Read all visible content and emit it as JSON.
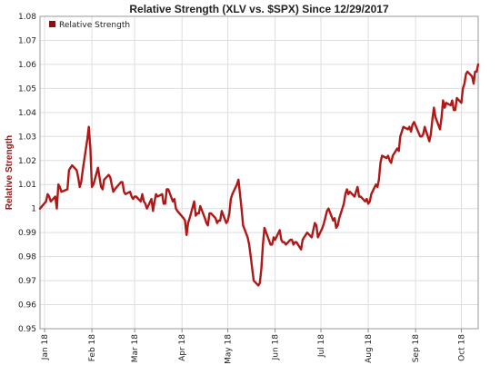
{
  "chart_data": {
    "type": "line",
    "title": "Relative Strength (XLV vs. $SPX) Since 12/29/2017",
    "ylabel": "Relative Strength",
    "xlabel": "",
    "ylim": [
      0.95,
      1.08
    ],
    "yticks": [
      0.95,
      0.96,
      0.97,
      0.98,
      0.99,
      1,
      1.01,
      1.02,
      1.03,
      1.04,
      1.05,
      1.06,
      1.07,
      1.08
    ],
    "xlim": [
      "2017-12-29",
      "2018-10-12"
    ],
    "xticks": [
      {
        "label": "Jan 18",
        "date": "2018-01-01"
      },
      {
        "label": "Feb 18",
        "date": "2018-02-01"
      },
      {
        "label": "Mar 18",
        "date": "2018-03-01"
      },
      {
        "label": "Apr 18",
        "date": "2018-04-01"
      },
      {
        "label": "May 18",
        "date": "2018-05-01"
      },
      {
        "label": "Jun 18",
        "date": "2018-06-01"
      },
      {
        "label": "Jul 18",
        "date": "2018-07-01"
      },
      {
        "label": "Aug 18",
        "date": "2018-08-01"
      },
      {
        "label": "Sep 18",
        "date": "2018-09-01"
      },
      {
        "label": "Oct 18",
        "date": "2018-10-01"
      }
    ],
    "grid": true,
    "legend": "top-left",
    "series": [
      {
        "name": "Relative Strength",
        "color": "#b01818",
        "points": [
          [
            "2017-12-29",
            1.0
          ],
          [
            "2018-01-02",
            1.003
          ],
          [
            "2018-01-03",
            1.006
          ],
          [
            "2018-01-04",
            1.005
          ],
          [
            "2018-01-05",
            1.003
          ],
          [
            "2018-01-08",
            1.005
          ],
          [
            "2018-01-09",
            1.0
          ],
          [
            "2018-01-10",
            1.01
          ],
          [
            "2018-01-11",
            1.009
          ],
          [
            "2018-01-12",
            1.007
          ],
          [
            "2018-01-16",
            1.008
          ],
          [
            "2018-01-17",
            1.016
          ],
          [
            "2018-01-18",
            1.017
          ],
          [
            "2018-01-19",
            1.018
          ],
          [
            "2018-01-22",
            1.016
          ],
          [
            "2018-01-23",
            1.013
          ],
          [
            "2018-01-24",
            1.009
          ],
          [
            "2018-01-25",
            1.011
          ],
          [
            "2018-01-26",
            1.016
          ],
          [
            "2018-01-29",
            1.029
          ],
          [
            "2018-01-30",
            1.034
          ],
          [
            "2018-01-31",
            1.025
          ],
          [
            "2018-02-01",
            1.009
          ],
          [
            "2018-02-02",
            1.01
          ],
          [
            "2018-02-05",
            1.017
          ],
          [
            "2018-02-06",
            1.013
          ],
          [
            "2018-02-07",
            1.009
          ],
          [
            "2018-02-08",
            1.008
          ],
          [
            "2018-02-09",
            1.012
          ],
          [
            "2018-02-12",
            1.014
          ],
          [
            "2018-02-13",
            1.013
          ],
          [
            "2018-02-14",
            1.01
          ],
          [
            "2018-02-15",
            1.007
          ],
          [
            "2018-02-16",
            1.008
          ],
          [
            "2018-02-20",
            1.011
          ],
          [
            "2018-02-21",
            1.011
          ],
          [
            "2018-02-22",
            1.007
          ],
          [
            "2018-02-23",
            1.006
          ],
          [
            "2018-02-26",
            1.007
          ],
          [
            "2018-02-27",
            1.005
          ],
          [
            "2018-02-28",
            1.004
          ],
          [
            "2018-03-01",
            1.005
          ],
          [
            "2018-03-02",
            1.005
          ],
          [
            "2018-03-05",
            1.003
          ],
          [
            "2018-03-06",
            1.006
          ],
          [
            "2018-03-07",
            1.003
          ],
          [
            "2018-03-08",
            1.002
          ],
          [
            "2018-03-09",
            1.0
          ],
          [
            "2018-03-12",
            1.004
          ],
          [
            "2018-03-13",
            0.999
          ],
          [
            "2018-03-14",
            1.003
          ],
          [
            "2018-03-15",
            1.006
          ],
          [
            "2018-03-16",
            1.005
          ],
          [
            "2018-03-19",
            1.006
          ],
          [
            "2018-03-20",
            1.002
          ],
          [
            "2018-03-21",
            1.002
          ],
          [
            "2018-03-22",
            1.008
          ],
          [
            "2018-03-23",
            1.008
          ],
          [
            "2018-03-26",
            1.003
          ],
          [
            "2018-03-27",
            1.004
          ],
          [
            "2018-03-28",
            1.0
          ],
          [
            "2018-03-29",
            0.999
          ],
          [
            "2018-04-02",
            0.996
          ],
          [
            "2018-04-03",
            0.995
          ],
          [
            "2018-04-04",
            0.989
          ],
          [
            "2018-04-05",
            0.994
          ],
          [
            "2018-04-06",
            0.996
          ],
          [
            "2018-04-09",
            1.003
          ],
          [
            "2018-04-10",
            0.997
          ],
          [
            "2018-04-11",
            0.998
          ],
          [
            "2018-04-12",
            0.998
          ],
          [
            "2018-04-13",
            1.001
          ],
          [
            "2018-04-16",
            0.996
          ],
          [
            "2018-04-17",
            0.994
          ],
          [
            "2018-04-18",
            0.993
          ],
          [
            "2018-04-19",
            0.998
          ],
          [
            "2018-04-20",
            0.998
          ],
          [
            "2018-04-23",
            0.996
          ],
          [
            "2018-04-24",
            0.994
          ],
          [
            "2018-04-25",
            0.995
          ],
          [
            "2018-04-26",
            0.995
          ],
          [
            "2018-04-27",
            0.999
          ],
          [
            "2018-04-30",
            0.994
          ],
          [
            "2018-05-01",
            0.995
          ],
          [
            "2018-05-02",
            0.998
          ],
          [
            "2018-05-03",
            1.004
          ],
          [
            "2018-05-04",
            1.006
          ],
          [
            "2018-05-07",
            1.01
          ],
          [
            "2018-05-08",
            1.012
          ],
          [
            "2018-05-09",
            1.006
          ],
          [
            "2018-05-10",
            1.0
          ],
          [
            "2018-05-11",
            0.993
          ],
          [
            "2018-05-14",
            0.988
          ],
          [
            "2018-05-15",
            0.985
          ],
          [
            "2018-05-16",
            0.98
          ],
          [
            "2018-05-17",
            0.975
          ],
          [
            "2018-05-18",
            0.97
          ],
          [
            "2018-05-21",
            0.968
          ],
          [
            "2018-05-22",
            0.969
          ],
          [
            "2018-05-23",
            0.975
          ],
          [
            "2018-05-24",
            0.985
          ],
          [
            "2018-05-25",
            0.992
          ],
          [
            "2018-05-29",
            0.985
          ],
          [
            "2018-05-30",
            0.985
          ],
          [
            "2018-05-31",
            0.988
          ],
          [
            "2018-06-01",
            0.987
          ],
          [
            "2018-06-04",
            0.991
          ],
          [
            "2018-06-05",
            0.987
          ],
          [
            "2018-06-06",
            0.986
          ],
          [
            "2018-06-07",
            0.986
          ],
          [
            "2018-06-08",
            0.985
          ],
          [
            "2018-06-11",
            0.987
          ],
          [
            "2018-06-12",
            0.987
          ],
          [
            "2018-06-13",
            0.985
          ],
          [
            "2018-06-14",
            0.986
          ],
          [
            "2018-06-15",
            0.986
          ],
          [
            "2018-06-18",
            0.983
          ],
          [
            "2018-06-19",
            0.987
          ],
          [
            "2018-06-20",
            0.988
          ],
          [
            "2018-06-21",
            0.989
          ],
          [
            "2018-06-22",
            0.99
          ],
          [
            "2018-06-25",
            0.988
          ],
          [
            "2018-06-26",
            0.991
          ],
          [
            "2018-06-27",
            0.994
          ],
          [
            "2018-06-28",
            0.993
          ],
          [
            "2018-06-29",
            0.988
          ],
          [
            "2018-07-02",
            0.992
          ],
          [
            "2018-07-03",
            0.994
          ],
          [
            "2018-07-05",
            0.999
          ],
          [
            "2018-07-06",
            1.0
          ],
          [
            "2018-07-09",
            0.995
          ],
          [
            "2018-07-10",
            0.996
          ],
          [
            "2018-07-11",
            0.992
          ],
          [
            "2018-07-12",
            0.993
          ],
          [
            "2018-07-13",
            0.996
          ],
          [
            "2018-07-16",
            1.002
          ],
          [
            "2018-07-17",
            1.006
          ],
          [
            "2018-07-18",
            1.008
          ],
          [
            "2018-07-19",
            1.006
          ],
          [
            "2018-07-20",
            1.007
          ],
          [
            "2018-07-23",
            1.005
          ],
          [
            "2018-07-24",
            1.007
          ],
          [
            "2018-07-25",
            1.009
          ],
          [
            "2018-07-26",
            1.005
          ],
          [
            "2018-07-27",
            1.005
          ],
          [
            "2018-07-30",
            1.003
          ],
          [
            "2018-07-31",
            1.004
          ],
          [
            "2018-08-01",
            1.002
          ],
          [
            "2018-08-02",
            1.003
          ],
          [
            "2018-08-03",
            1.006
          ],
          [
            "2018-08-06",
            1.01
          ],
          [
            "2018-08-07",
            1.009
          ],
          [
            "2018-08-08",
            1.012
          ],
          [
            "2018-08-09",
            1.019
          ],
          [
            "2018-08-10",
            1.022
          ],
          [
            "2018-08-13",
            1.021
          ],
          [
            "2018-08-14",
            1.022
          ],
          [
            "2018-08-15",
            1.02
          ],
          [
            "2018-08-16",
            1.019
          ],
          [
            "2018-08-17",
            1.022
          ],
          [
            "2018-08-20",
            1.025
          ],
          [
            "2018-08-21",
            1.024
          ],
          [
            "2018-08-22",
            1.03
          ],
          [
            "2018-08-23",
            1.032
          ],
          [
            "2018-08-24",
            1.034
          ],
          [
            "2018-08-27",
            1.033
          ],
          [
            "2018-08-28",
            1.034
          ],
          [
            "2018-08-29",
            1.032
          ],
          [
            "2018-08-30",
            1.035
          ],
          [
            "2018-08-31",
            1.036
          ],
          [
            "2018-09-04",
            1.03
          ],
          [
            "2018-09-05",
            1.03
          ],
          [
            "2018-09-06",
            1.031
          ],
          [
            "2018-09-07",
            1.034
          ],
          [
            "2018-09-10",
            1.028
          ],
          [
            "2018-09-11",
            1.031
          ],
          [
            "2018-09-12",
            1.037
          ],
          [
            "2018-09-13",
            1.042
          ],
          [
            "2018-09-14",
            1.038
          ],
          [
            "2018-09-17",
            1.033
          ],
          [
            "2018-09-18",
            1.038
          ],
          [
            "2018-09-19",
            1.045
          ],
          [
            "2018-09-20",
            1.042
          ],
          [
            "2018-09-21",
            1.044
          ],
          [
            "2018-09-24",
            1.043
          ],
          [
            "2018-09-25",
            1.045
          ],
          [
            "2018-09-26",
            1.041
          ],
          [
            "2018-09-27",
            1.041
          ],
          [
            "2018-09-28",
            1.046
          ],
          [
            "2018-10-01",
            1.044
          ],
          [
            "2018-10-02",
            1.05
          ],
          [
            "2018-10-03",
            1.052
          ],
          [
            "2018-10-04",
            1.056
          ],
          [
            "2018-10-05",
            1.057
          ],
          [
            "2018-10-08",
            1.055
          ],
          [
            "2018-10-09",
            1.052
          ],
          [
            "2018-10-10",
            1.057
          ],
          [
            "2018-10-11",
            1.057
          ],
          [
            "2018-10-12",
            1.06
          ]
        ]
      }
    ]
  }
}
